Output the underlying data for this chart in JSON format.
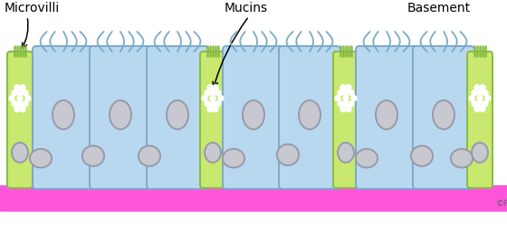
{
  "background_color": "#ffffff",
  "basement_color": "#ff55dd",
  "blue_cell_color": "#b8d8f0",
  "blue_cell_edge": "#7aaac8",
  "green_cell_color": "#c8e870",
  "green_cell_edge": "#88bb44",
  "nucleus_color": "#c8c8d0",
  "nucleus_edge": "#9999aa",
  "cilia_color": "#7aaac8",
  "mucin_dot_color": "#ffffff",
  "label_fontsize": 10,
  "copyright_text": "©Fa",
  "label_microvilli": "Microvilli",
  "label_mucins": "Mucins",
  "label_basement": "Basement"
}
